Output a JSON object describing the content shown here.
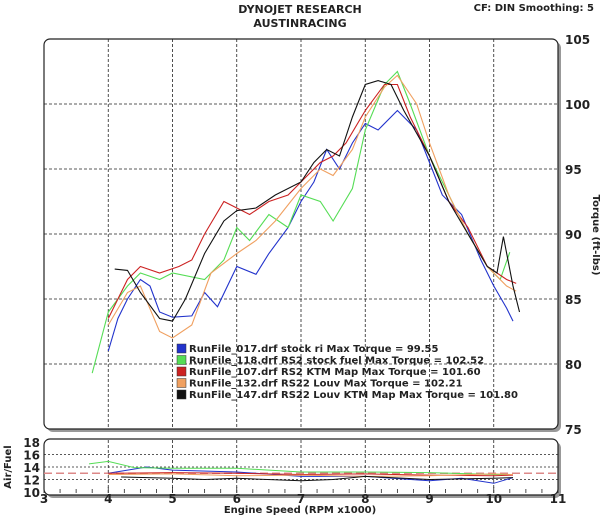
{
  "header": {
    "title": "DYNOJET RESEARCH",
    "subtitle": "AUSTINRACING",
    "settings": "CF: DIN  Smoothing: 5"
  },
  "chart_data": [
    {
      "type": "line",
      "title": "Torque",
      "ylabel": "Torque (ft-lbs)",
      "xlim": [
        3,
        11
      ],
      "ylim": [
        75,
        105
      ],
      "yticks": [
        75,
        80,
        85,
        90,
        95,
        100,
        105
      ],
      "grid": true,
      "legend_position": "bottom-center",
      "series": [
        {
          "name": "RunFile_017.drf stock ri Max Torque = 99.55",
          "color": "#2233cc",
          "x": [
            4.0,
            4.15,
            4.3,
            4.5,
            4.65,
            4.8,
            5.0,
            5.3,
            5.5,
            5.7,
            6.0,
            6.3,
            6.5,
            6.8,
            7.0,
            7.2,
            7.4,
            7.6,
            7.8,
            8.0,
            8.2,
            8.5,
            8.8,
            9.0,
            9.2,
            9.5,
            9.8,
            10.0,
            10.2,
            10.3
          ],
          "y": [
            81,
            83.5,
            85,
            86.5,
            86,
            84,
            83.6,
            83.7,
            85.5,
            84.4,
            87.5,
            86.9,
            88.5,
            90.5,
            92.5,
            94,
            96.5,
            95,
            97,
            98.5,
            98,
            99.5,
            98,
            95.5,
            93,
            91.5,
            88,
            86,
            84.3,
            83.3
          ]
        },
        {
          "name": "RunFile_118.drf RS2 stock fuel Max Torque = 102.52",
          "color": "#55dd55",
          "x": [
            3.75,
            4.0,
            4.3,
            4.5,
            4.8,
            5.0,
            5.5,
            5.8,
            6.0,
            6.2,
            6.5,
            6.8,
            7.0,
            7.3,
            7.5,
            7.8,
            8.0,
            8.3,
            8.5,
            8.7,
            9.0,
            9.3,
            9.6,
            9.9,
            10.1,
            10.25
          ],
          "y": [
            79.3,
            84,
            86,
            87,
            86.5,
            87,
            86.5,
            88,
            90.5,
            89.5,
            91.5,
            90.5,
            93,
            92.5,
            91,
            93.5,
            98,
            101.5,
            102.5,
            100,
            96,
            93,
            90,
            87.5,
            86.5,
            88.6
          ]
        },
        {
          "name": "RunFile_107.drf RS2 KTM Map Max Torque = 101.60",
          "color": "#cc2222",
          "x": [
            4.0,
            4.3,
            4.5,
            4.8,
            5.1,
            5.3,
            5.5,
            5.8,
            6.0,
            6.2,
            6.5,
            6.8,
            7.0,
            7.3,
            7.5,
            7.7,
            8.0,
            8.3,
            8.5,
            8.7,
            9.0,
            9.3,
            9.6,
            9.9,
            10.2,
            10.35
          ],
          "y": [
            83.5,
            86.5,
            87.5,
            87,
            87.5,
            88,
            90,
            92.5,
            92,
            91.5,
            92.5,
            93,
            94,
            95.5,
            96,
            97,
            99.5,
            101.5,
            101.5,
            99,
            96,
            92.5,
            90.5,
            87.5,
            86.5,
            86.2
          ]
        },
        {
          "name": "RunFile_132.drf RS22 Louv Max Torque = 102.21",
          "color": "#f0a060",
          "x": [
            4.0,
            4.3,
            4.5,
            4.8,
            5.0,
            5.3,
            5.6,
            6.0,
            6.3,
            6.6,
            7.0,
            7.3,
            7.5,
            7.8,
            8.0,
            8.3,
            8.5,
            8.8,
            9.0,
            9.3,
            9.6,
            9.9,
            10.2,
            10.35
          ],
          "y": [
            83,
            85.5,
            86,
            82.5,
            82,
            83,
            87,
            88.5,
            89.5,
            91,
            93.5,
            95,
            94.5,
            96.5,
            99,
            101.3,
            102.2,
            100,
            97,
            93,
            90,
            87.5,
            86,
            85.6
          ]
        },
        {
          "name": "RunFile_147.drf RS22 Louv KTM Map Max Torque = 101.80",
          "color": "#111111",
          "x": [
            4.1,
            4.3,
            4.5,
            4.8,
            5.0,
            5.2,
            5.5,
            5.8,
            6.0,
            6.3,
            6.6,
            7.0,
            7.2,
            7.4,
            7.6,
            7.8,
            8.0,
            8.2,
            8.4,
            8.6,
            9.0,
            9.3,
            9.6,
            9.9,
            10.05,
            10.15,
            10.3,
            10.4
          ],
          "y": [
            87.3,
            87.2,
            85.5,
            83.5,
            83.3,
            85,
            88.5,
            91,
            91.8,
            92,
            93,
            94,
            95.5,
            96.5,
            96,
            99,
            101.5,
            101.8,
            101.5,
            99.5,
            96,
            92.5,
            90,
            87.5,
            87,
            89.8,
            86,
            84
          ]
        }
      ]
    },
    {
      "type": "line",
      "title": "Air/Fuel",
      "ylabel": "Air/Fuel",
      "xlabel": "Engine Speed (RPM x1000)",
      "xlim": [
        3,
        11
      ],
      "xticks": [
        3,
        4,
        5,
        6,
        7,
        8,
        9,
        10,
        11
      ],
      "ylim": [
        10,
        18
      ],
      "yticks": [
        10,
        12,
        14,
        16,
        18
      ],
      "grid": true,
      "reference_line": 13,
      "reference_color": "#dd8888",
      "series": [
        {
          "name": "017",
          "color": "#2233cc",
          "x": [
            4.0,
            4.3,
            4.6,
            5.0,
            6.0,
            7.0,
            8.0,
            9.0,
            9.5,
            10.0,
            10.3
          ],
          "y": [
            13,
            13.5,
            14,
            13.5,
            13.2,
            12.5,
            12.5,
            11.8,
            12.2,
            11.4,
            12.3
          ]
        },
        {
          "name": "118",
          "color": "#55dd55",
          "x": [
            3.7,
            4.0,
            4.4,
            5.0,
            6.0,
            7.0,
            8.0,
            9.0,
            10.0,
            10.25
          ],
          "y": [
            14.5,
            14.9,
            13.9,
            13.8,
            13.8,
            13.2,
            13.2,
            13.1,
            12.8,
            12.8
          ]
        },
        {
          "name": "107",
          "color": "#cc2222",
          "x": [
            4.0,
            5.0,
            6.0,
            7.0,
            8.0,
            9.0,
            10.0,
            10.3
          ],
          "y": [
            13,
            13.1,
            13,
            12.8,
            12.9,
            12.7,
            12.6,
            12.7
          ]
        },
        {
          "name": "132",
          "color": "#f0a060",
          "x": [
            4.0,
            5.0,
            6.0,
            7.0,
            8.0,
            9.0,
            10.0,
            10.3
          ],
          "y": [
            12.8,
            12.9,
            12.6,
            12.7,
            12.5,
            12.6,
            12.9,
            12.8
          ]
        },
        {
          "name": "147",
          "color": "#111111",
          "x": [
            4.2,
            5.0,
            5.5,
            6.0,
            7.0,
            7.5,
            8.0,
            9.0,
            10.0,
            10.3
          ],
          "y": [
            12.4,
            12.2,
            12.0,
            12.2,
            11.8,
            12.0,
            12.5,
            12.0,
            12.2,
            12.3
          ]
        }
      ]
    }
  ]
}
